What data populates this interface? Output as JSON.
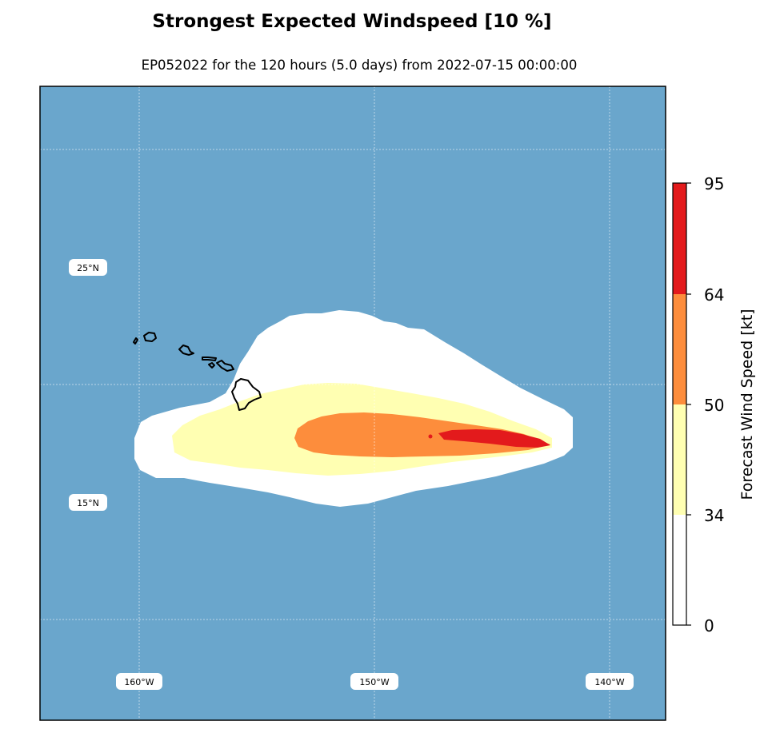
{
  "title": "Strongest Expected Windspeed [10 %]",
  "subtitle": "EP052022 for the 120 hours (5.0 days) from 2022-07-15 00:00:00",
  "map": {
    "ocean_color": "#6aa6cc",
    "lat_labels": [
      "25°N",
      "15°N"
    ],
    "lon_labels": [
      "160°W",
      "150°W",
      "140°W"
    ]
  },
  "colorbar": {
    "label": "Forecast Wind Speed [kt]",
    "ticks": [
      "0",
      "34",
      "50",
      "64",
      "95"
    ],
    "bins": [
      {
        "from": 0,
        "to": 34,
        "color": "#ffffff"
      },
      {
        "from": 34,
        "to": 50,
        "color": "#ffffb2"
      },
      {
        "from": 50,
        "to": 64,
        "color": "#fd8d3c"
      },
      {
        "from": 64,
        "to": 95,
        "color": "#e31a1c"
      }
    ]
  }
}
